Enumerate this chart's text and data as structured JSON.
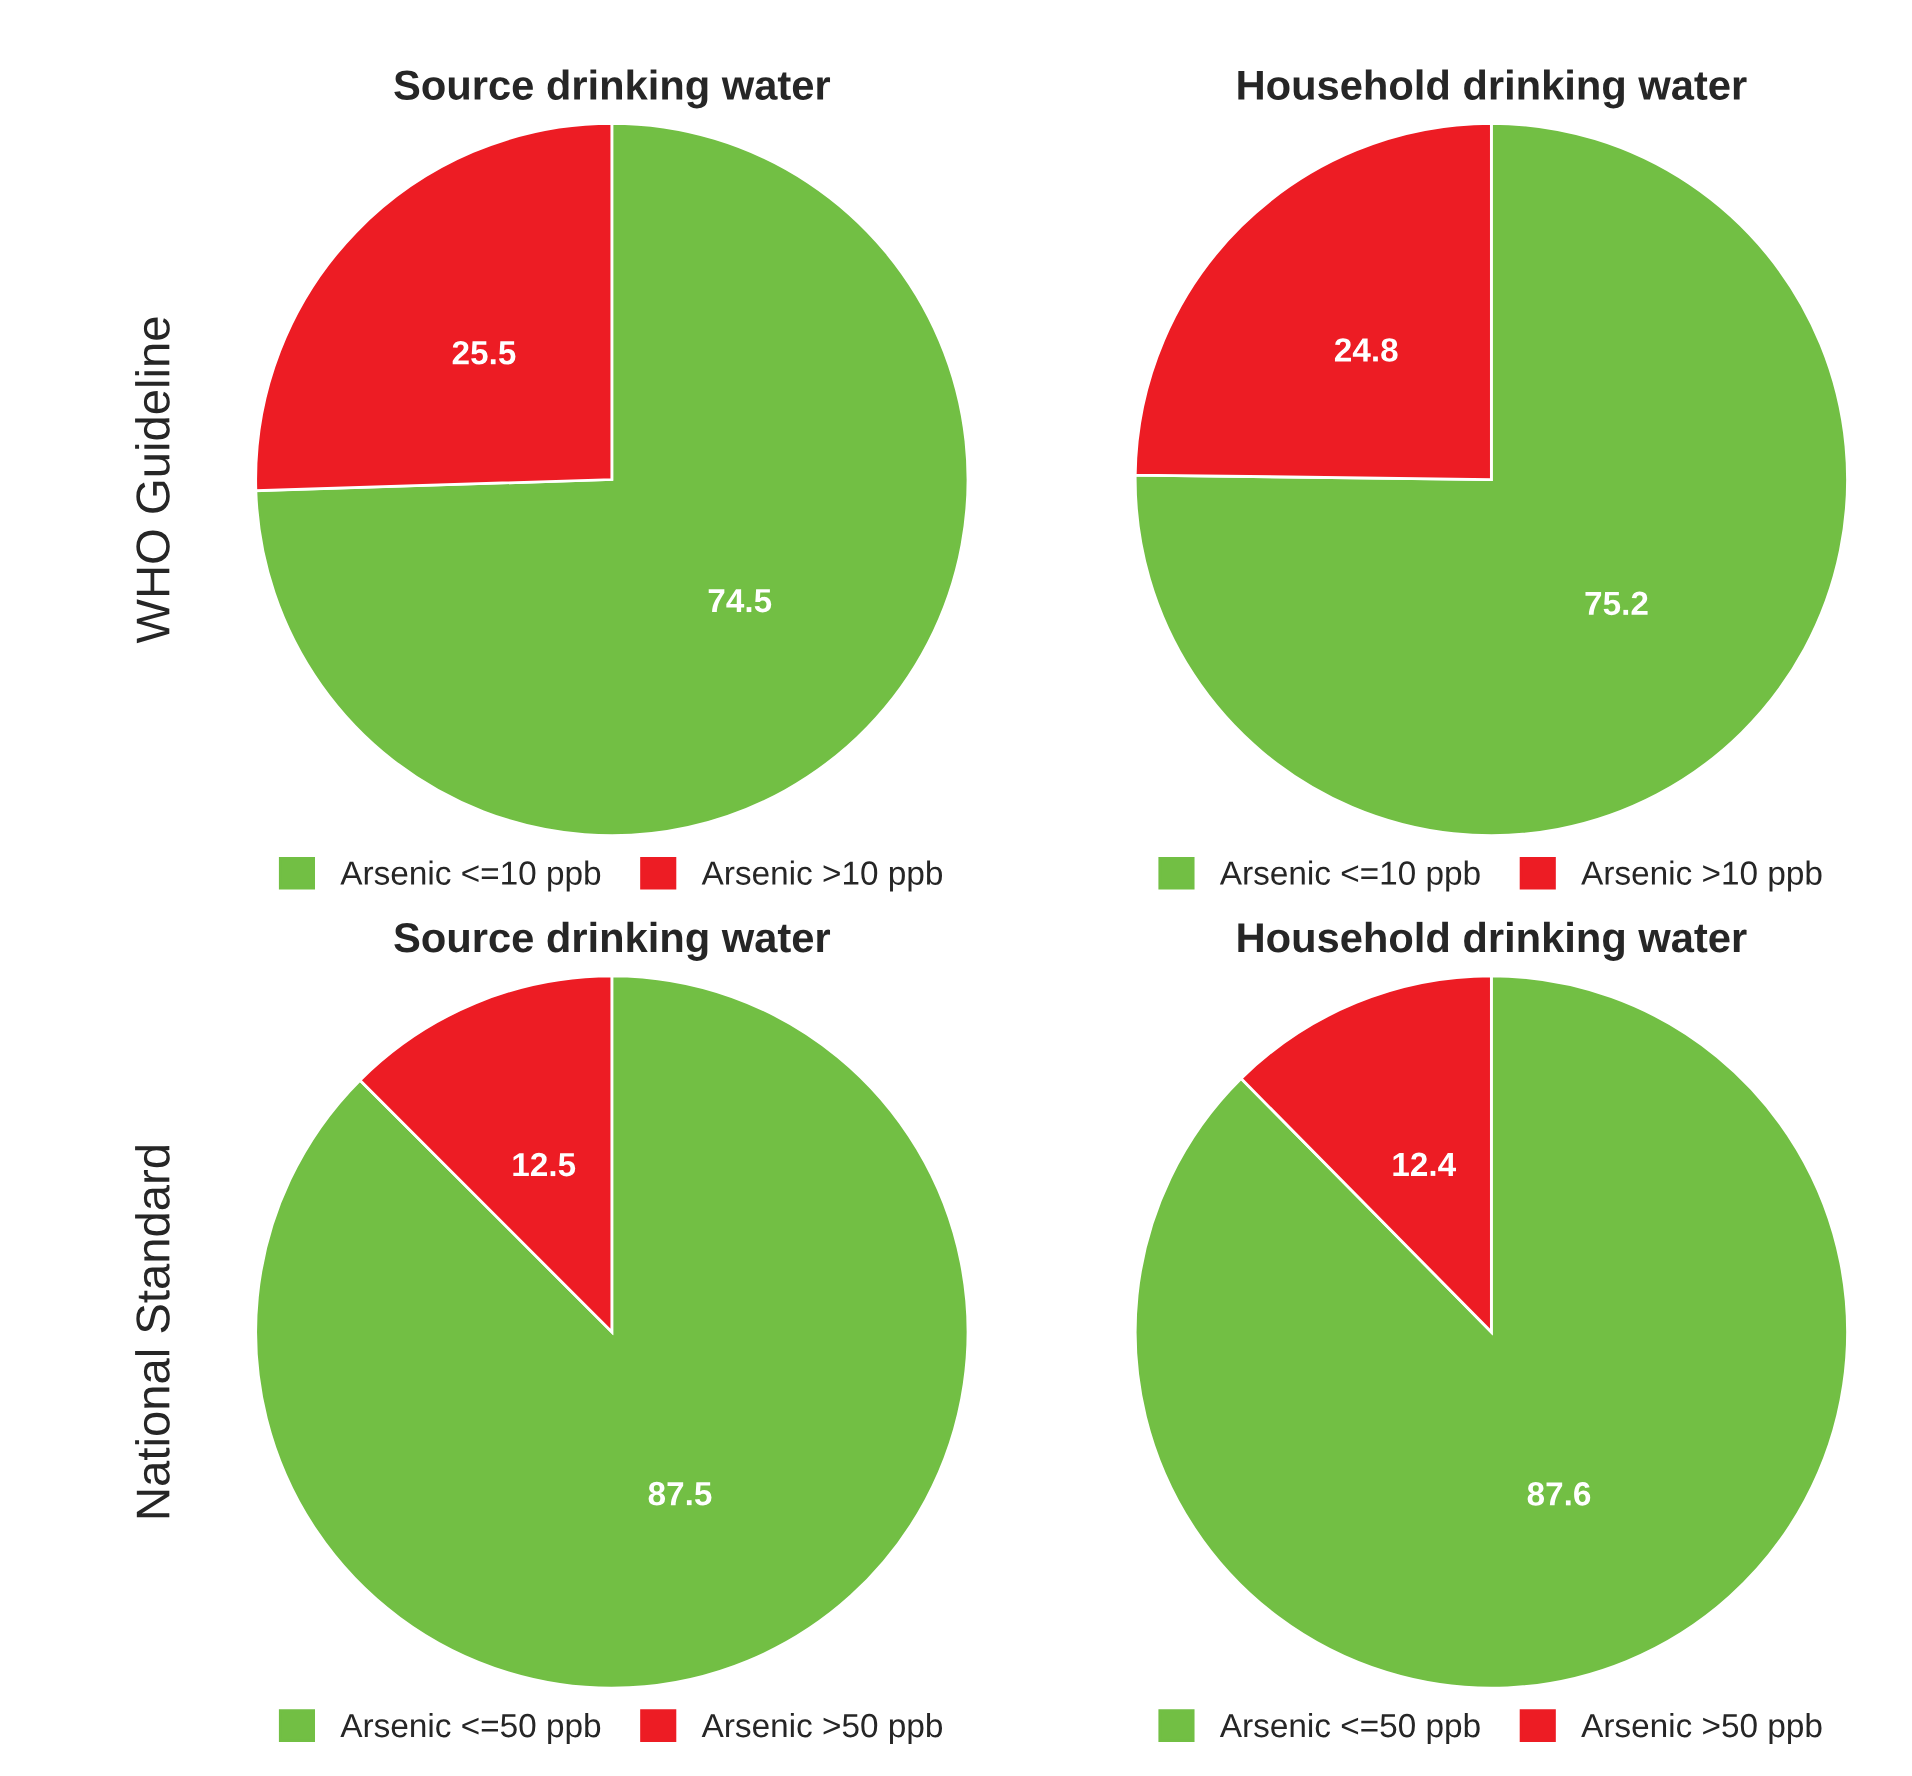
{
  "chart_data": [
    {
      "type": "pie",
      "title": "Source drinking water",
      "ylabel": "WHO Guideline",
      "categories": [
        "Arsenic <=10 ppb",
        "Arsenic >10 ppb"
      ],
      "values": [
        74.5,
        25.5
      ],
      "colors": [
        "#72bf44",
        "#ed1c24"
      ],
      "data_labels": true,
      "legend": "bottom"
    },
    {
      "type": "pie",
      "title": "Household drinking water",
      "categories": [
        "Arsenic <=10 ppb",
        "Arsenic >10 ppb"
      ],
      "values": [
        75.2,
        24.8
      ],
      "colors": [
        "#72bf44",
        "#ed1c24"
      ],
      "data_labels": true,
      "legend": "bottom"
    },
    {
      "type": "pie",
      "title": "Source drinking water",
      "ylabel": "National Standard",
      "categories": [
        "Arsenic <=50 ppb",
        "Arsenic >50 ppb"
      ],
      "values": [
        87.5,
        12.5
      ],
      "colors": [
        "#72bf44",
        "#ed1c24"
      ],
      "data_labels": true,
      "legend": "bottom"
    },
    {
      "type": "pie",
      "title": "Household drinking water",
      "categories": [
        "Arsenic <=50 ppb",
        "Arsenic >50 ppb"
      ],
      "values": [
        87.6,
        12.4
      ],
      "colors": [
        "#72bf44",
        "#ed1c24"
      ],
      "data_labels": true,
      "legend": "bottom"
    }
  ]
}
